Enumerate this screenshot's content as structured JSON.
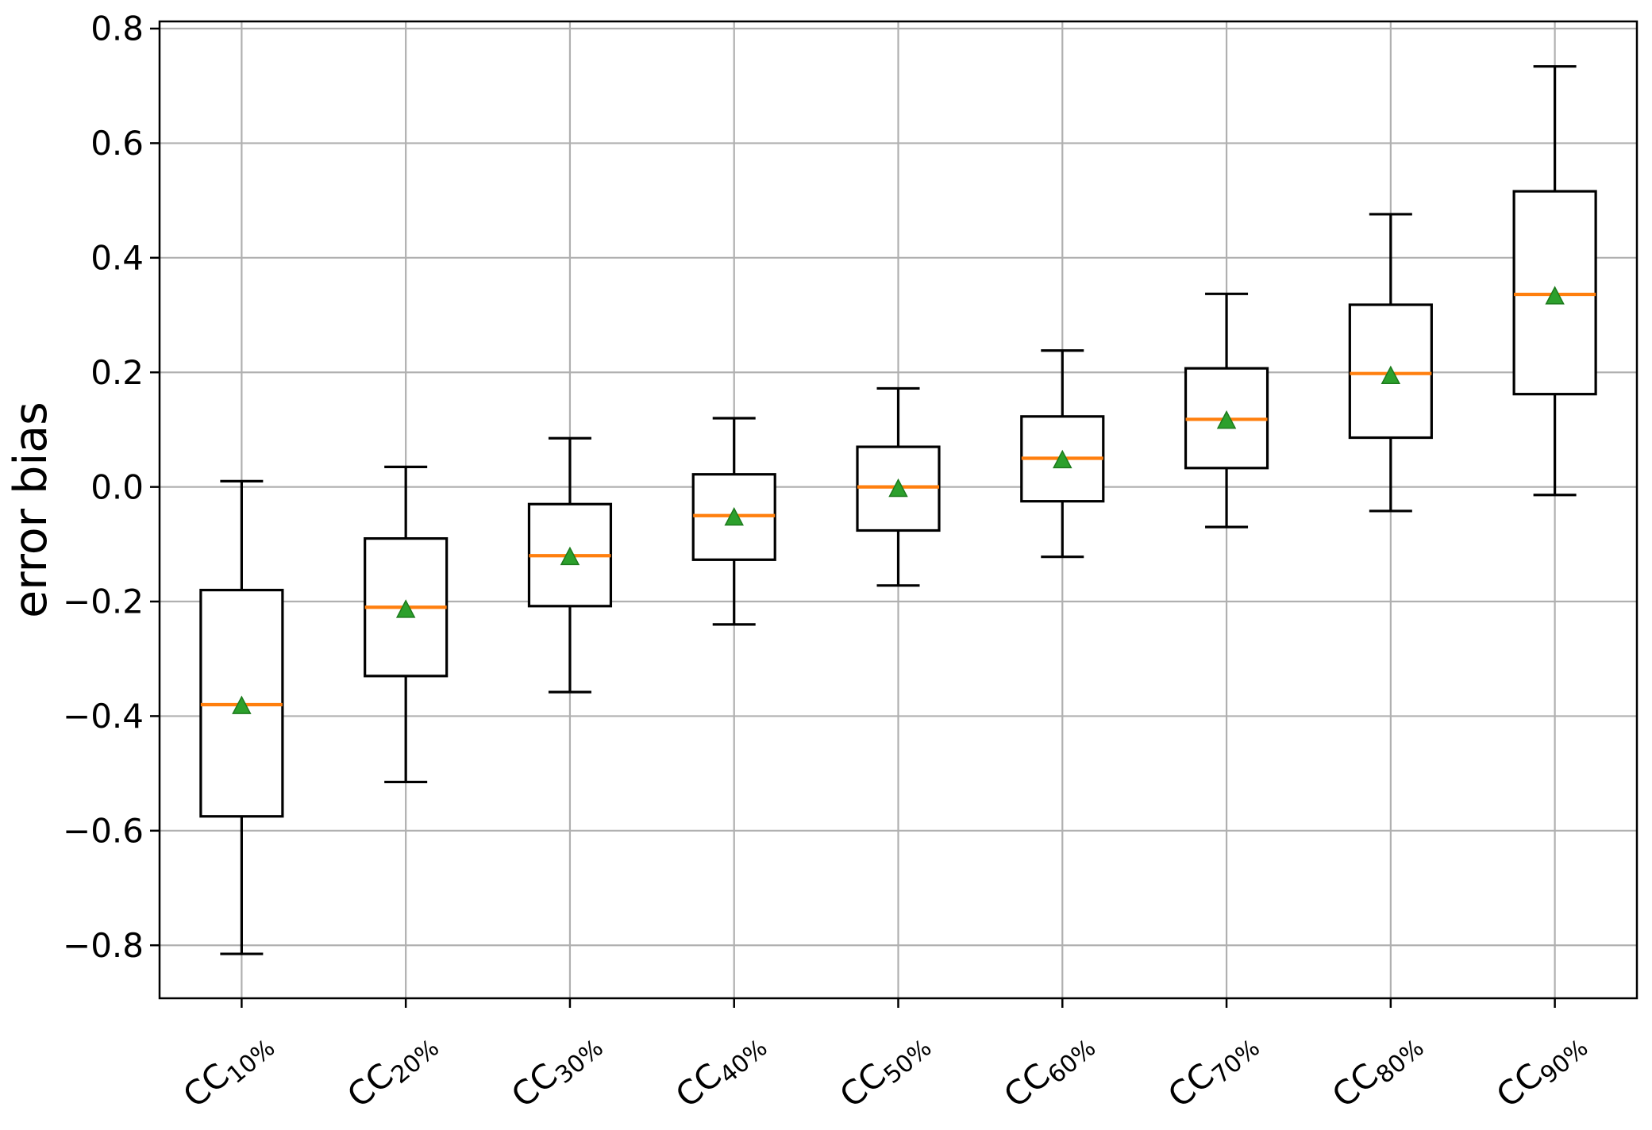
{
  "page": {
    "background": "#ffffff"
  },
  "chart_data": {
    "type": "box",
    "title": "",
    "xlabel": "",
    "ylabel": "error bias",
    "ylim": [
      -0.8925,
      0.8125
    ],
    "grid": true,
    "legend": null,
    "yticks": [
      {
        "value": 0.8,
        "label": "0.8"
      },
      {
        "value": 0.6,
        "label": "0.6"
      },
      {
        "value": 0.4,
        "label": "0.4"
      },
      {
        "value": 0.2,
        "label": "0.2"
      },
      {
        "value": 0.0,
        "label": "0.0"
      },
      {
        "value": -0.2,
        "label": "−0.2"
      },
      {
        "value": -0.4,
        "label": "−0.4"
      },
      {
        "value": -0.6,
        "label": "−0.6"
      },
      {
        "value": -0.8,
        "label": "−0.8"
      }
    ],
    "categories": [
      {
        "base": "CC",
        "sub": "10%",
        "label": "CC10%"
      },
      {
        "base": "CC",
        "sub": "20%",
        "label": "CC20%"
      },
      {
        "base": "CC",
        "sub": "30%",
        "label": "CC30%"
      },
      {
        "base": "CC",
        "sub": "40%",
        "label": "CC40%"
      },
      {
        "base": "CC",
        "sub": "50%",
        "label": "CC50%"
      },
      {
        "base": "CC",
        "sub": "60%",
        "label": "CC60%"
      },
      {
        "base": "CC",
        "sub": "70%",
        "label": "CC70%"
      },
      {
        "base": "CC",
        "sub": "80%",
        "label": "CC80%"
      },
      {
        "base": "CC",
        "sub": "90%",
        "label": "CC90%"
      }
    ],
    "boxes": [
      {
        "category": "CC10%",
        "whisker_low": -0.815,
        "q1": -0.575,
        "median": -0.38,
        "mean": -0.383,
        "q3": -0.18,
        "whisker_high": 0.01
      },
      {
        "category": "CC20%",
        "whisker_low": -0.515,
        "q1": -0.33,
        "median": -0.21,
        "mean": -0.215,
        "q3": -0.09,
        "whisker_high": 0.035
      },
      {
        "category": "CC30%",
        "whisker_low": -0.358,
        "q1": -0.208,
        "median": -0.12,
        "mean": -0.123,
        "q3": -0.03,
        "whisker_high": 0.085
      },
      {
        "category": "CC40%",
        "whisker_low": -0.24,
        "q1": -0.127,
        "median": -0.05,
        "mean": -0.054,
        "q3": 0.022,
        "whisker_high": 0.12
      },
      {
        "category": "CC50%",
        "whisker_low": -0.172,
        "q1": -0.076,
        "median": 0.0,
        "mean": -0.004,
        "q3": 0.07,
        "whisker_high": 0.172
      },
      {
        "category": "CC60%",
        "whisker_low": -0.122,
        "q1": -0.025,
        "median": 0.05,
        "mean": 0.046,
        "q3": 0.123,
        "whisker_high": 0.238
      },
      {
        "category": "CC70%",
        "whisker_low": -0.07,
        "q1": 0.033,
        "median": 0.118,
        "mean": 0.115,
        "q3": 0.207,
        "whisker_high": 0.337
      },
      {
        "category": "CC80%",
        "whisker_low": -0.042,
        "q1": 0.086,
        "median": 0.198,
        "mean": 0.193,
        "q3": 0.318,
        "whisker_high": 0.476
      },
      {
        "category": "CC90%",
        "whisker_low": -0.014,
        "q1": 0.162,
        "median": 0.336,
        "mean": 0.332,
        "q3": 0.516,
        "whisker_high": 0.734
      }
    ],
    "style": {
      "box_color": "#000000",
      "median_color": "#ff7f0e",
      "mean_color": "#2ca02c",
      "mean_edge_color": "#1d7a1d",
      "mean_marker": "triangle-up",
      "grid_color": "#b0b0b0",
      "spine_color": "#000000",
      "text_color": "#000000",
      "background": "#ffffff"
    }
  }
}
